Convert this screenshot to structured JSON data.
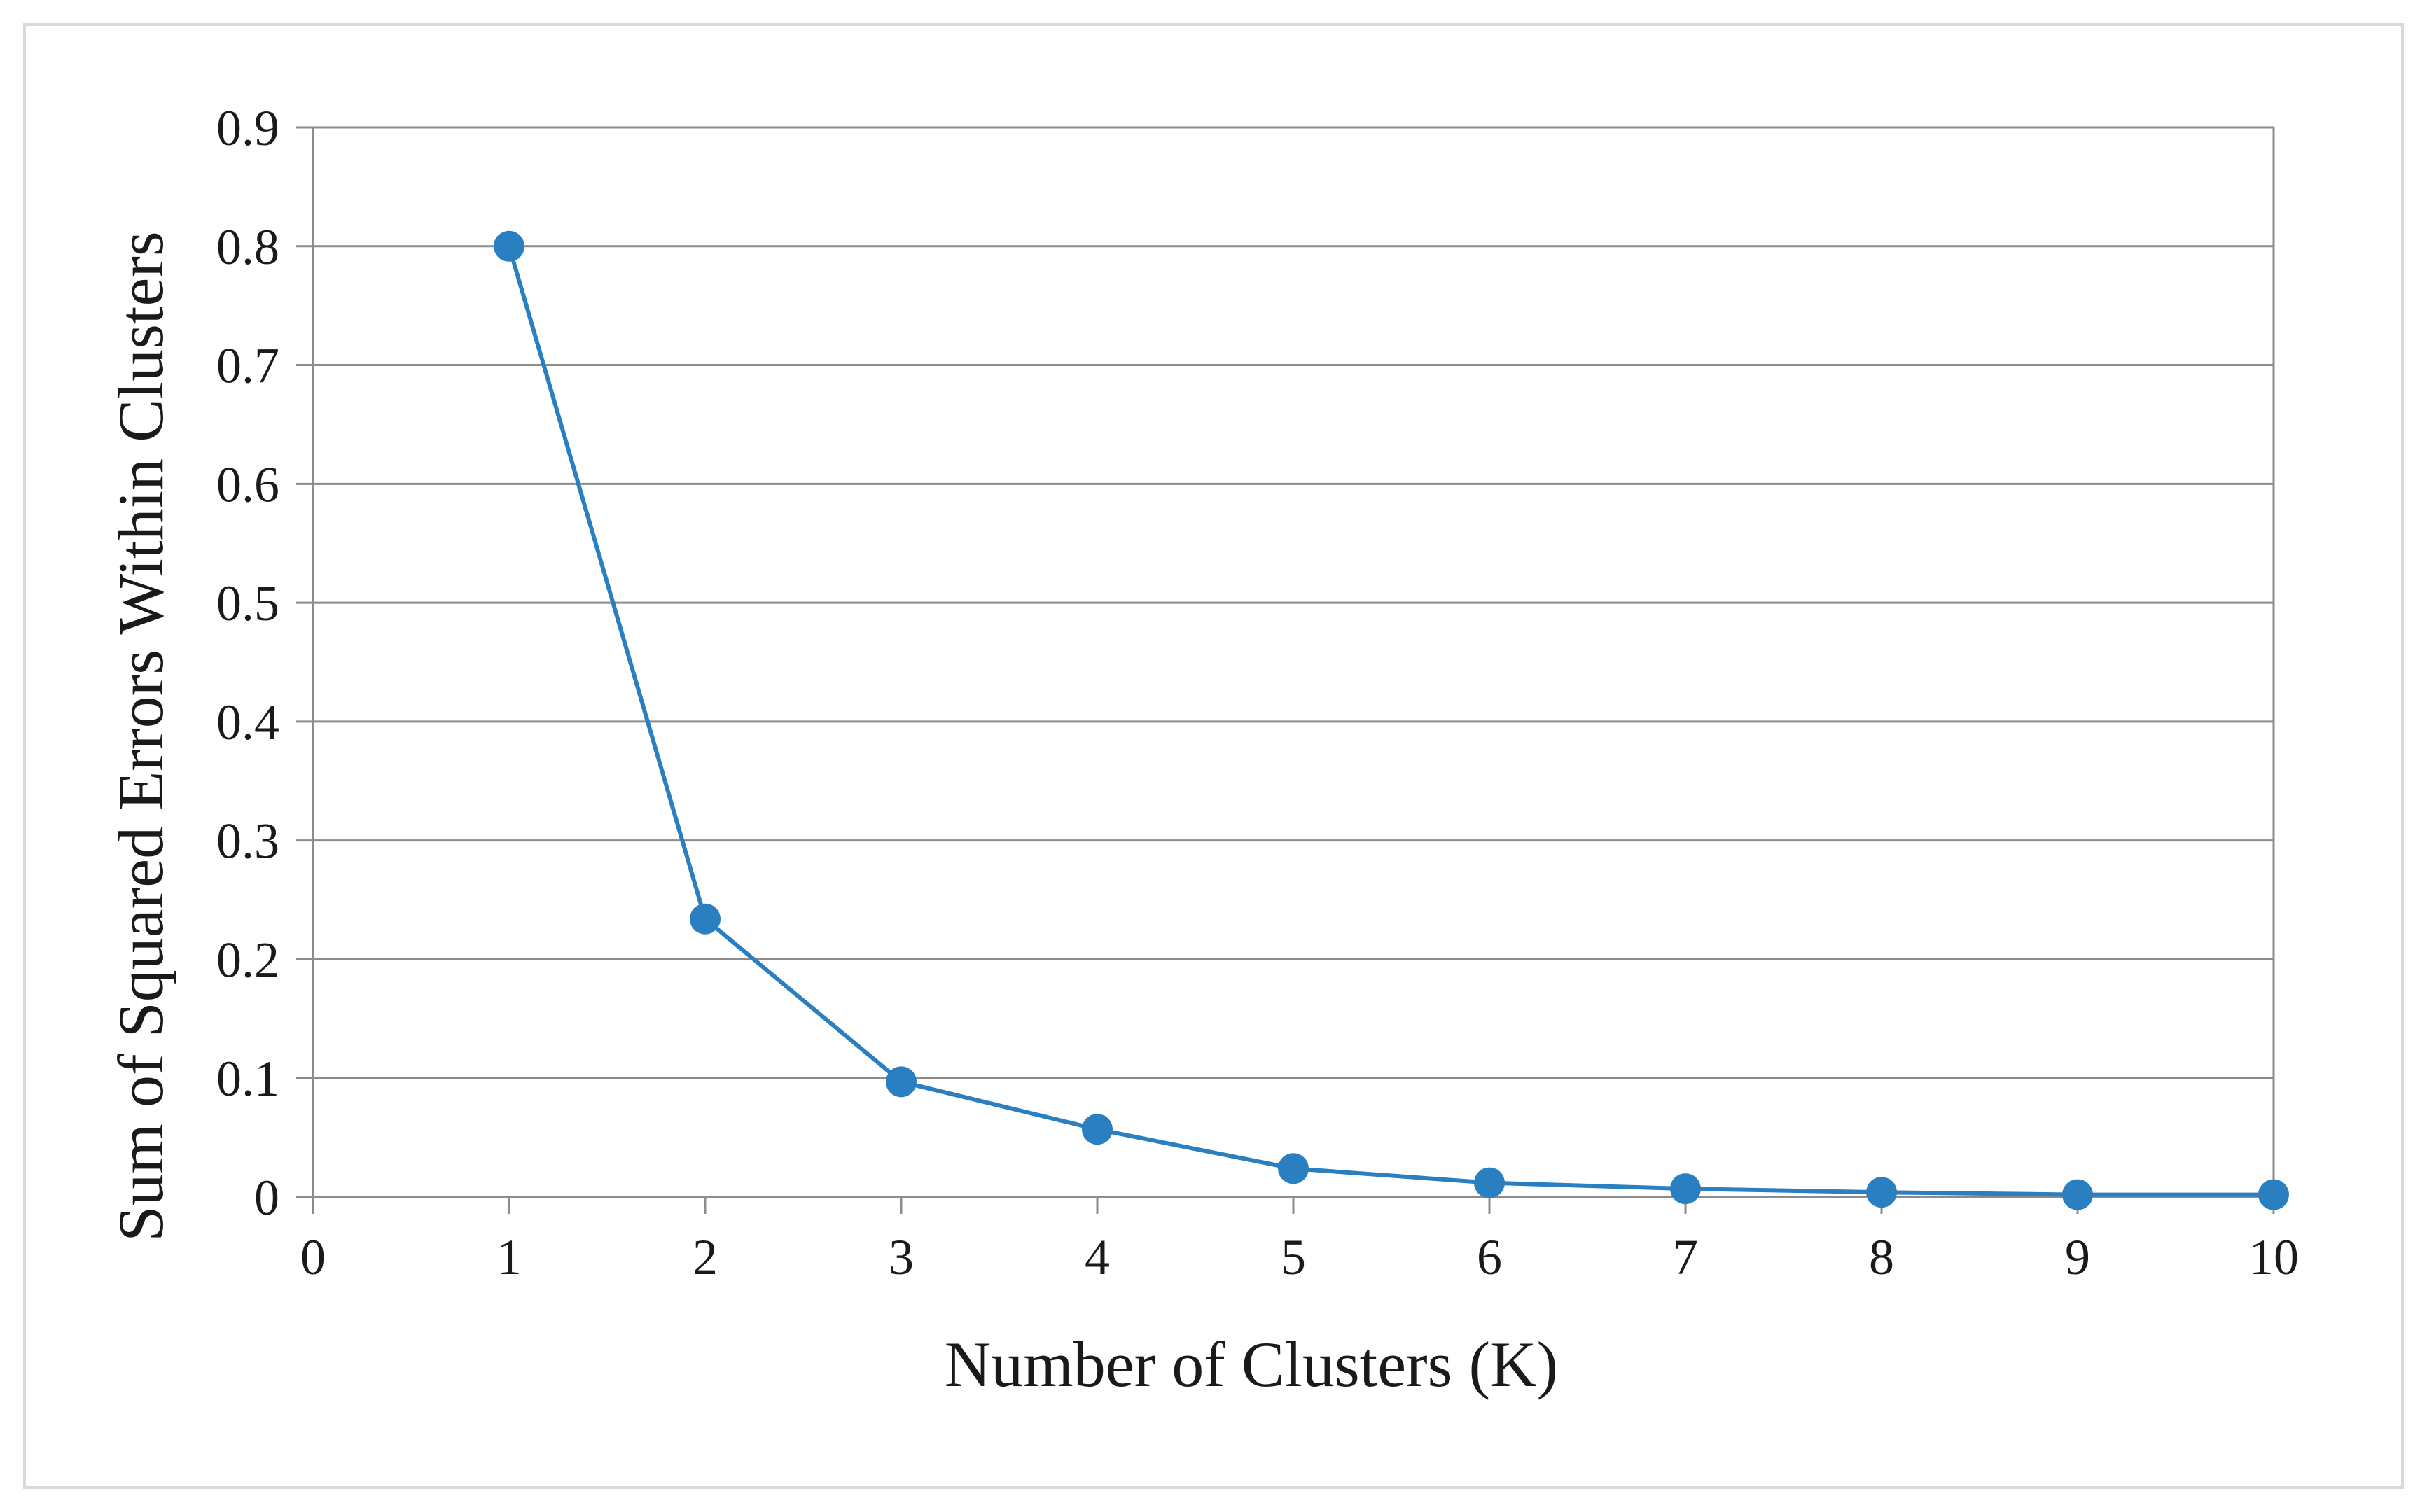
{
  "chart_data": {
    "type": "line",
    "title": "",
    "xlabel": "Number of  Clusters (K)",
    "ylabel": "Sum of Squared Errors Within Clusters",
    "xlim": [
      0,
      10
    ],
    "ylim": [
      0,
      0.9
    ],
    "x_ticks": [
      "0",
      "1",
      "2",
      "3",
      "4",
      "5",
      "6",
      "7",
      "8",
      "9",
      "10"
    ],
    "y_ticks": [
      "0",
      "0.1",
      "0.2",
      "0.3",
      "0.4",
      "0.5",
      "0.6",
      "0.7",
      "0.8",
      "0.9"
    ],
    "grid": "horizontal",
    "legend": "none",
    "series": [
      {
        "color": "#2a7fc1",
        "x": [
          1,
          2,
          3,
          4,
          5,
          6,
          7,
          8,
          9,
          10
        ],
        "y": [
          0.8,
          0.234,
          0.097,
          0.057,
          0.024,
          0.012,
          0.007,
          0.004,
          0.002,
          0.002
        ]
      }
    ]
  }
}
